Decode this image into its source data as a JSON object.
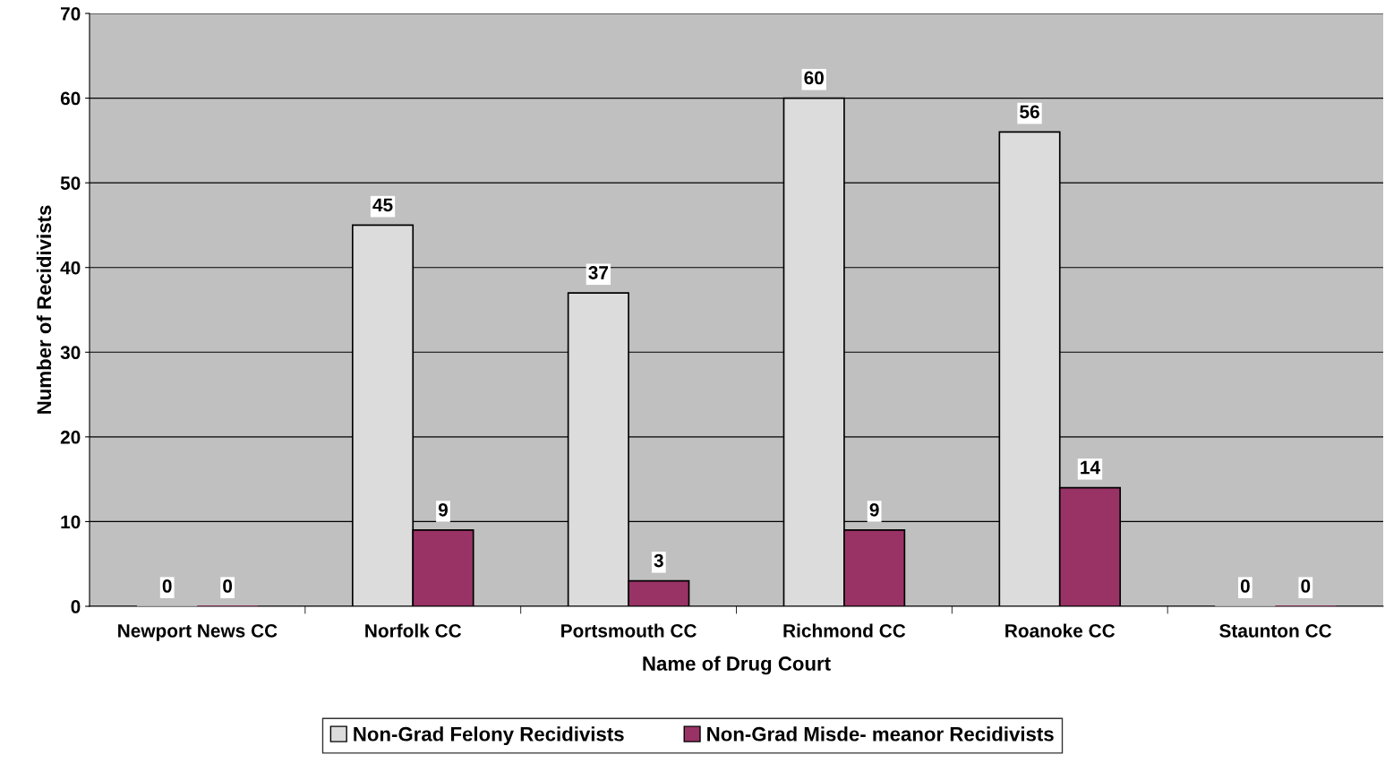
{
  "chart_data": {
    "type": "bar",
    "xlabel": "Name of Drug Court",
    "ylabel": "Number of Recidivists",
    "categories": [
      "Newport News CC",
      "Norfolk CC",
      "Portsmouth CC",
      "Richmond CC",
      "Roanoke CC",
      "Staunton CC"
    ],
    "series": [
      {
        "name": "Non-Grad Felony Recidivists",
        "color": "#dcdcdc",
        "values": [
          0,
          45,
          37,
          60,
          56,
          0
        ]
      },
      {
        "name": "Non-Grad Misde- meanor Recidivists",
        "color": "#993366",
        "values": [
          0,
          9,
          3,
          9,
          14,
          0
        ]
      }
    ],
    "ylim": [
      0,
      70
    ],
    "yticks": [
      0,
      10,
      20,
      30,
      40,
      50,
      60,
      70
    ],
    "grid": "y",
    "legend": "bottom",
    "data_labels": true
  }
}
